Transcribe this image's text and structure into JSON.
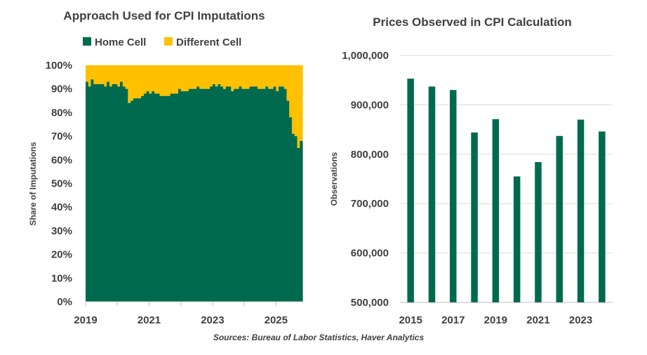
{
  "colors": {
    "home": "#006a4e",
    "different": "#ffc000",
    "grid": "#d9d9d9",
    "text": "#404040"
  },
  "source_text": "Sources: Bureau of Labor Statistics, Haver Analytics",
  "chart_data": [
    {
      "type": "area",
      "stacked": true,
      "title": "Approach Used for CPI Imputations",
      "xlabel": "",
      "ylabel": "Share of Imputations",
      "ylim": [
        0,
        100
      ],
      "yticks": [
        "0%",
        "10%",
        "20%",
        "30%",
        "40%",
        "50%",
        "60%",
        "70%",
        "80%",
        "90%",
        "100%"
      ],
      "xticks": [
        "2019",
        "2021",
        "2023",
        "2025"
      ],
      "xrange": [
        "2019-01",
        "2025-08"
      ],
      "legend": [
        "Home Cell",
        "Different Cell"
      ],
      "series": [
        {
          "name": "Home Cell",
          "values": [
            93,
            91,
            94,
            92,
            92,
            92,
            92,
            91,
            93,
            91,
            92,
            92,
            91,
            93,
            91,
            90,
            84,
            85,
            86,
            86,
            86,
            87,
            88,
            89,
            88,
            89,
            88,
            88,
            87,
            87,
            87,
            87,
            88,
            88,
            88,
            90,
            89,
            89,
            89,
            90,
            90,
            90,
            91,
            90,
            90,
            90,
            90,
            91,
            92,
            91,
            92,
            91,
            90,
            91,
            91,
            89,
            90,
            90,
            91,
            90,
            90,
            90,
            91,
            91,
            91,
            90,
            90,
            90,
            91,
            90,
            90,
            91,
            89,
            91,
            91,
            90,
            85,
            78,
            71,
            70,
            65,
            68
          ]
        },
        {
          "name": "Different Cell",
          "values": [
            7,
            9,
            6,
            8,
            8,
            8,
            8,
            9,
            7,
            9,
            8,
            8,
            9,
            7,
            9,
            10,
            16,
            15,
            14,
            14,
            14,
            13,
            12,
            11,
            12,
            11,
            12,
            12,
            13,
            13,
            13,
            13,
            12,
            12,
            12,
            10,
            11,
            11,
            11,
            10,
            10,
            10,
            9,
            10,
            10,
            10,
            10,
            9,
            8,
            9,
            8,
            9,
            10,
            9,
            9,
            11,
            10,
            10,
            9,
            10,
            10,
            10,
            9,
            9,
            9,
            10,
            10,
            10,
            9,
            10,
            10,
            9,
            11,
            9,
            9,
            10,
            15,
            22,
            29,
            30,
            35,
            32
          ]
        }
      ]
    },
    {
      "type": "bar",
      "title": "Prices Observed in CPI Calculation",
      "xlabel": "",
      "ylabel": "Observations",
      "ylim": [
        500000,
        1000000
      ],
      "yticks": [
        "500,000",
        "600,000",
        "700,000",
        "800,000",
        "900,000",
        "1,000,000"
      ],
      "xticks": [
        "2015",
        "2017",
        "2019",
        "2021",
        "2023"
      ],
      "categories": [
        "2015",
        "2016",
        "2017",
        "2018",
        "2019",
        "2020",
        "2021",
        "2022",
        "2023",
        "2024"
      ],
      "values": [
        953000,
        937000,
        930000,
        844000,
        871000,
        755000,
        784000,
        837000,
        870000,
        846000
      ]
    }
  ]
}
